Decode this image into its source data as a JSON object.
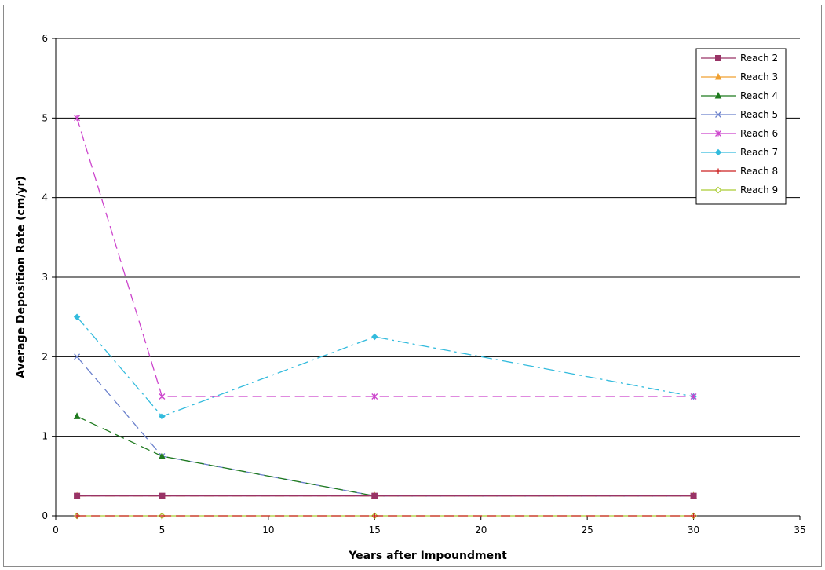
{
  "chart_data": {
    "type": "line",
    "title": "",
    "xlabel": "Years after Impoundment",
    "ylabel": "Average Deposition Rate (cm/yr)",
    "xlim": [
      0,
      35
    ],
    "ylim": [
      0,
      6
    ],
    "xticks": [
      0,
      5,
      10,
      15,
      20,
      25,
      30,
      35
    ],
    "yticks": [
      0,
      1,
      2,
      3,
      4,
      5,
      6
    ],
    "grid": "horizontal major gridlines",
    "legend_position": "top-right",
    "series": [
      {
        "name": "Reach 2",
        "color": "#993366",
        "marker": "square",
        "dash": "none",
        "points": [
          [
            1,
            0.25
          ],
          [
            5,
            0.25
          ],
          [
            15,
            0.25
          ],
          [
            30,
            0.25
          ]
        ]
      },
      {
        "name": "Reach 3",
        "color": "#F0A030",
        "marker": "triangle",
        "dash": "long-dash",
        "points": [
          [
            1,
            0.25
          ],
          [
            5,
            0.25
          ],
          [
            15,
            0.25
          ],
          [
            30,
            0.25
          ]
        ]
      },
      {
        "name": "Reach 4",
        "color": "#1E7A1E",
        "marker": "triangle",
        "dash": "long-dash",
        "points": [
          [
            1,
            1.25
          ],
          [
            5,
            0.75
          ],
          [
            15,
            0.25
          ],
          [
            30,
            0.25
          ]
        ]
      },
      {
        "name": "Reach 5",
        "color": "#6A80CC",
        "marker": "x",
        "dash": "long-dash",
        "points": [
          [
            1,
            2.0
          ],
          [
            5,
            0.75
          ],
          [
            15,
            0.25
          ],
          [
            30,
            0.25
          ]
        ]
      },
      {
        "name": "Reach 6",
        "color": "#CC44CC",
        "marker": "star",
        "dash": "long-dash",
        "points": [
          [
            1,
            5.0
          ],
          [
            5,
            1.5
          ],
          [
            15,
            1.5
          ],
          [
            30,
            1.5
          ]
        ]
      },
      {
        "name": "Reach 7",
        "color": "#33BBDD",
        "marker": "diamond",
        "dash": "dash-dot",
        "points": [
          [
            1,
            2.5
          ],
          [
            5,
            1.25
          ],
          [
            15,
            2.25
          ],
          [
            30,
            1.5
          ]
        ]
      },
      {
        "name": "Reach 8",
        "color": "#CC2222",
        "marker": "plus",
        "dash": "long-dash",
        "points": [
          [
            1,
            0
          ],
          [
            5,
            0
          ],
          [
            15,
            0
          ],
          [
            30,
            0
          ]
        ]
      },
      {
        "name": "Reach 9",
        "color": "#AACC33",
        "marker": "open-diamond",
        "dash": "none",
        "points": [
          [
            1,
            0
          ],
          [
            5,
            0
          ],
          [
            15,
            0
          ],
          [
            30,
            0
          ]
        ]
      }
    ]
  }
}
